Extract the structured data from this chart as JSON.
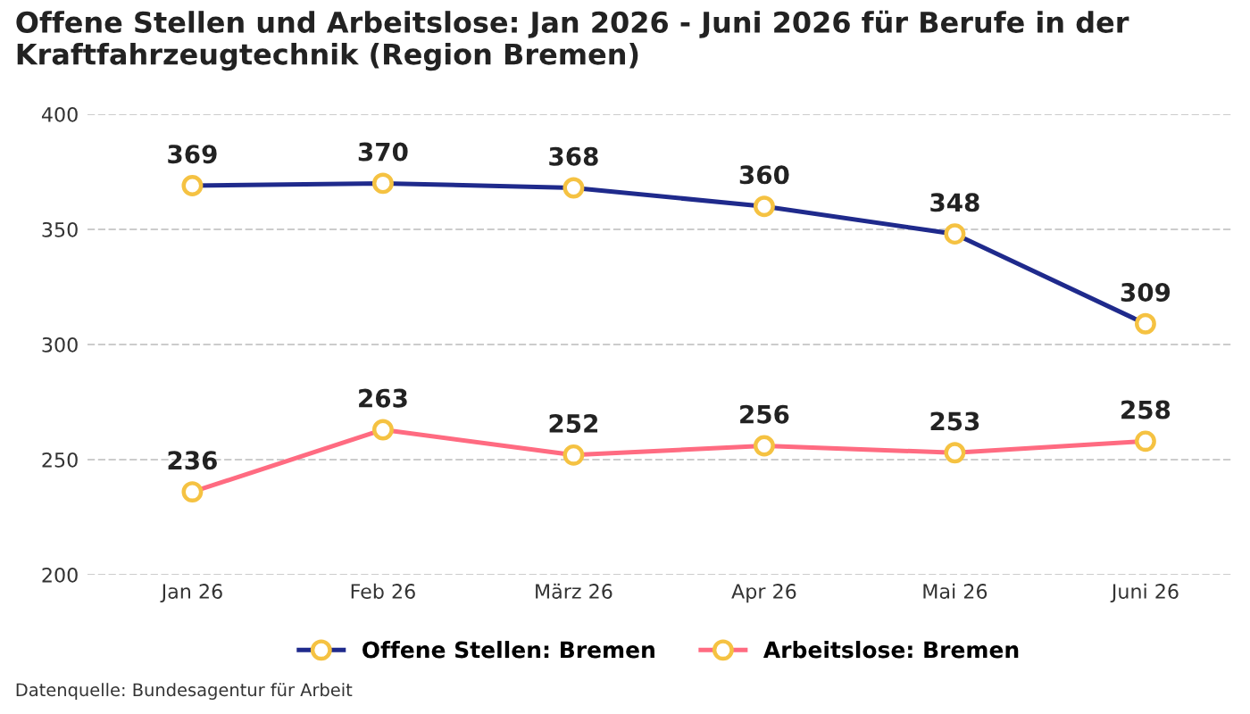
{
  "chart_data": {
    "type": "line",
    "title": "Offene Stellen und Arbeitslose: Jan 2026 - Juni 2026 für Berufe in der Kraftfahrzeugtechnik (Region Bremen)",
    "categories": [
      "Jan 26",
      "Feb 26",
      "März 26",
      "Apr 26",
      "Mai 26",
      "Juni 26"
    ],
    "series": [
      {
        "name": "Offene Stellen: Bremen",
        "color": "#1f2a8c",
        "values": [
          369,
          370,
          368,
          360,
          348,
          309
        ]
      },
      {
        "name": "Arbeitslose: Bremen",
        "color": "#ff6b81",
        "values": [
          236,
          263,
          252,
          256,
          253,
          258
        ]
      }
    ],
    "ylim": [
      200,
      400
    ],
    "yticks": [
      200,
      250,
      300,
      350,
      400
    ],
    "grid": "y",
    "legend": "bottom",
    "marker": "circle",
    "line_style": "solid",
    "data_labels": true,
    "annotations": [
      "Datenquelle: Bundesagentur für Arbeit"
    ]
  }
}
